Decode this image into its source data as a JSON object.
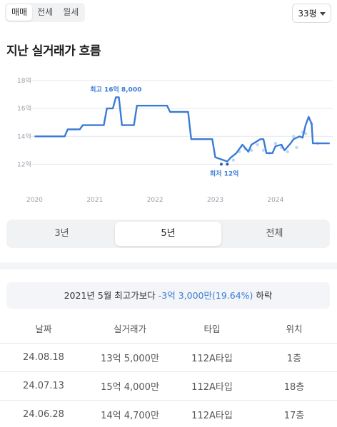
{
  "deal_types": [
    "매매",
    "전세",
    "월세"
  ],
  "area": {
    "label": "33평"
  },
  "title": "지난 실거래가 흐름",
  "chart_data": {
    "type": "line",
    "title": "",
    "ylabel": "",
    "y_ticks": [
      "18억",
      "16억",
      "14억",
      "12억"
    ],
    "x_ticks": [
      "2020",
      "2021",
      "2022",
      "2023",
      "2024"
    ],
    "ylim": [
      11,
      18
    ],
    "xlim": [
      2019.9,
      2024.95
    ],
    "series": [
      {
        "x": [
          2020.0,
          2020.5,
          2020.55,
          2020.75,
          2020.8,
          2021.15,
          2021.2,
          2021.3,
          2021.35,
          2021.4,
          2021.45,
          2021.65,
          2021.7,
          2022.2,
          2022.25,
          2022.55,
          2022.6,
          2022.95,
          2023.0,
          2023.2,
          2023.25,
          2023.35,
          2023.45,
          2023.55,
          2023.6,
          2023.75,
          2023.8,
          2023.85,
          2023.95,
          2024.0,
          2024.1,
          2024.15,
          2024.25,
          2024.3,
          2024.4,
          2024.45,
          2024.5,
          2024.55,
          2024.6,
          2024.62,
          2024.9
        ],
        "y": [
          14.0,
          14.0,
          14.5,
          14.5,
          14.8,
          14.8,
          16.0,
          16.0,
          16.8,
          16.8,
          14.8,
          14.8,
          16.2,
          16.2,
          15.75,
          15.75,
          13.8,
          13.8,
          12.5,
          12.2,
          12.45,
          12.8,
          13.4,
          12.9,
          13.4,
          13.8,
          13.8,
          12.8,
          12.8,
          13.3,
          13.4,
          13.0,
          13.5,
          13.8,
          14.0,
          13.9,
          14.8,
          15.4,
          14.9,
          13.5,
          13.5
        ]
      }
    ],
    "scatter": [
      {
        "x": 2023.1,
        "y": 12.0
      },
      {
        "x": 2023.2,
        "y": 12.0
      },
      {
        "x": 2023.3,
        "y": 12.3
      },
      {
        "x": 2023.4,
        "y": 12.9
      },
      {
        "x": 2023.5,
        "y": 13.1
      },
      {
        "x": 2023.6,
        "y": 13.0
      },
      {
        "x": 2023.7,
        "y": 13.4
      },
      {
        "x": 2023.8,
        "y": 13.0
      },
      {
        "x": 2023.9,
        "y": 12.8
      },
      {
        "x": 2024.0,
        "y": 13.5
      },
      {
        "x": 2024.1,
        "y": 13.2
      },
      {
        "x": 2024.2,
        "y": 12.9
      },
      {
        "x": 2024.3,
        "y": 14.0
      },
      {
        "x": 2024.35,
        "y": 13.2
      },
      {
        "x": 2024.45,
        "y": 14.3
      },
      {
        "x": 2024.5,
        "y": 14.2
      },
      {
        "x": 2024.6,
        "y": 14.9
      },
      {
        "x": 2024.7,
        "y": 13.5
      }
    ],
    "annotations": [
      {
        "text": "최고 16억 8,000",
        "x": 2021.35,
        "y": 16.8,
        "position": "above"
      },
      {
        "text": "최저 12억",
        "x": 2023.15,
        "y": 12.0,
        "position": "below"
      }
    ],
    "colors": {
      "line": "#3a7bd5",
      "point": "#bcd7f5",
      "low_point": "#2d5fa8",
      "grid": "#e5e7eb"
    },
    "grid": true
  },
  "periods": [
    "3년",
    "5년",
    "전체"
  ],
  "summary": {
    "prefix": "2021년 5월 최고가보다 ",
    "highlight": "-3억 3,000만(19.64%)",
    "suffix": " 하락"
  },
  "table": {
    "headers": [
      "날짜",
      "실거래가",
      "타입",
      "위치"
    ],
    "rows": [
      [
        "24.08.18",
        "13억 5,000만",
        "112A타입",
        "1층"
      ],
      [
        "24.07.13",
        "15억 4,000만",
        "112A타입",
        "18층"
      ],
      [
        "24.06.28",
        "14억 4,700만",
        "112A타입",
        "17층"
      ]
    ]
  }
}
